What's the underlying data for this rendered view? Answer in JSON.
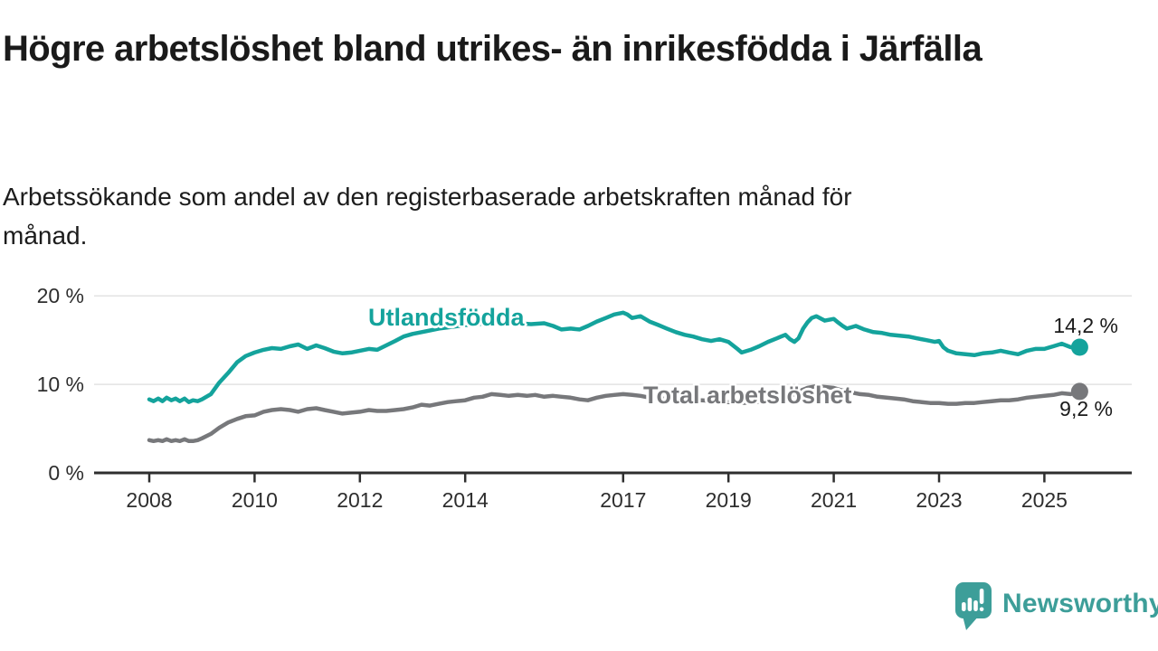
{
  "header": {
    "title": "Högre arbetslöshet bland utrikes- än inrikesfödda i Järfälla",
    "subtitle": "Arbetssökande som andel av den registerbaserade arbetskraften månad för månad."
  },
  "branding": {
    "logo_text": "Newsworthy",
    "logo_icon": "speech-bubble-bar-chart-icon",
    "logo_color": "#3D9E99"
  },
  "colors": {
    "background": "#ffffff",
    "title_text": "#1a1a1a",
    "teal_series": "#14A39C",
    "gray_series": "#77787B",
    "grid": "#E3E3E3",
    "axis": "#2E2E2E",
    "tick_text": "#2E2E2E",
    "value_text": "#1a1a1a"
  },
  "chart_data": {
    "type": "line",
    "title": "Högre arbetslöshet bland utrikes- än inrikesfödda i Järfälla",
    "xlabel": "",
    "ylabel": "",
    "unit": "%",
    "grid": "horizontal-only",
    "legend_position": "inline-labels",
    "xlim": [
      2007.85,
      2026.4
    ],
    "ylim": [
      0,
      21.5
    ],
    "x_ticks": [
      {
        "year": 2008,
        "label": "2008"
      },
      {
        "year": 2010,
        "label": "2010"
      },
      {
        "year": 2012,
        "label": "2012"
      },
      {
        "year": 2014,
        "label": "2014"
      },
      {
        "year": 2017,
        "label": "2017"
      },
      {
        "year": 2019,
        "label": "2019"
      },
      {
        "year": 2021,
        "label": "2021"
      },
      {
        "year": 2023,
        "label": "2023"
      },
      {
        "year": 2025,
        "label": "2025"
      }
    ],
    "y_ticks": [
      {
        "value": 0,
        "label": "0 %"
      },
      {
        "value": 10,
        "label": "10 %"
      },
      {
        "value": 20,
        "label": "20 %"
      }
    ],
    "series": [
      {
        "name": "Utlandsfödda",
        "color": "#14A39C",
        "end_value": 14.2,
        "end_label": "14,2 %",
        "points": [
          [
            2008.0,
            8.3
          ],
          [
            2008.08,
            8.1
          ],
          [
            2008.17,
            8.4
          ],
          [
            2008.25,
            8.1
          ],
          [
            2008.33,
            8.5
          ],
          [
            2008.42,
            8.2
          ],
          [
            2008.5,
            8.4
          ],
          [
            2008.58,
            8.1
          ],
          [
            2008.67,
            8.4
          ],
          [
            2008.75,
            8.0
          ],
          [
            2008.83,
            8.2
          ],
          [
            2008.92,
            8.1
          ],
          [
            2009.0,
            8.3
          ],
          [
            2009.17,
            8.9
          ],
          [
            2009.33,
            10.2
          ],
          [
            2009.5,
            11.3
          ],
          [
            2009.67,
            12.5
          ],
          [
            2009.83,
            13.2
          ],
          [
            2010.0,
            13.6
          ],
          [
            2010.17,
            13.9
          ],
          [
            2010.33,
            14.1
          ],
          [
            2010.5,
            14.0
          ],
          [
            2010.67,
            14.3
          ],
          [
            2010.83,
            14.5
          ],
          [
            2011.0,
            14.0
          ],
          [
            2011.17,
            14.4
          ],
          [
            2011.33,
            14.1
          ],
          [
            2011.5,
            13.7
          ],
          [
            2011.67,
            13.5
          ],
          [
            2011.83,
            13.6
          ],
          [
            2012.0,
            13.8
          ],
          [
            2012.17,
            14.0
          ],
          [
            2012.33,
            13.9
          ],
          [
            2012.5,
            14.4
          ],
          [
            2012.67,
            14.9
          ],
          [
            2012.83,
            15.4
          ],
          [
            2013.0,
            15.7
          ],
          [
            2013.25,
            16.0
          ],
          [
            2013.5,
            16.3
          ],
          [
            2013.75,
            16.5
          ],
          [
            2014.0,
            16.7
          ],
          [
            2014.25,
            16.8
          ],
          [
            2014.5,
            17.0
          ],
          [
            2014.75,
            17.0
          ],
          [
            2015.0,
            16.9
          ],
          [
            2015.25,
            16.8
          ],
          [
            2015.5,
            16.9
          ],
          [
            2015.67,
            16.6
          ],
          [
            2015.83,
            16.2
          ],
          [
            2016.0,
            16.3
          ],
          [
            2016.17,
            16.2
          ],
          [
            2016.33,
            16.6
          ],
          [
            2016.5,
            17.1
          ],
          [
            2016.67,
            17.5
          ],
          [
            2016.83,
            17.9
          ],
          [
            2017.0,
            18.1
          ],
          [
            2017.08,
            17.9
          ],
          [
            2017.17,
            17.5
          ],
          [
            2017.33,
            17.7
          ],
          [
            2017.5,
            17.1
          ],
          [
            2017.67,
            16.7
          ],
          [
            2017.83,
            16.3
          ],
          [
            2018.0,
            15.9
          ],
          [
            2018.17,
            15.6
          ],
          [
            2018.33,
            15.4
          ],
          [
            2018.5,
            15.1
          ],
          [
            2018.67,
            14.9
          ],
          [
            2018.83,
            15.1
          ],
          [
            2019.0,
            14.8
          ],
          [
            2019.17,
            14.0
          ],
          [
            2019.25,
            13.6
          ],
          [
            2019.42,
            13.9
          ],
          [
            2019.58,
            14.3
          ],
          [
            2019.75,
            14.8
          ],
          [
            2019.92,
            15.2
          ],
          [
            2020.0,
            15.4
          ],
          [
            2020.08,
            15.6
          ],
          [
            2020.17,
            15.1
          ],
          [
            2020.25,
            14.8
          ],
          [
            2020.33,
            15.2
          ],
          [
            2020.42,
            16.3
          ],
          [
            2020.5,
            17.0
          ],
          [
            2020.58,
            17.5
          ],
          [
            2020.67,
            17.7
          ],
          [
            2020.83,
            17.2
          ],
          [
            2021.0,
            17.4
          ],
          [
            2021.08,
            17.0
          ],
          [
            2021.17,
            16.6
          ],
          [
            2021.25,
            16.3
          ],
          [
            2021.42,
            16.6
          ],
          [
            2021.58,
            16.2
          ],
          [
            2021.75,
            15.9
          ],
          [
            2021.92,
            15.8
          ],
          [
            2022.08,
            15.6
          ],
          [
            2022.25,
            15.5
          ],
          [
            2022.42,
            15.4
          ],
          [
            2022.58,
            15.2
          ],
          [
            2022.75,
            15.0
          ],
          [
            2022.92,
            14.8
          ],
          [
            2023.0,
            14.9
          ],
          [
            2023.08,
            14.2
          ],
          [
            2023.17,
            13.8
          ],
          [
            2023.33,
            13.5
          ],
          [
            2023.5,
            13.4
          ],
          [
            2023.67,
            13.3
          ],
          [
            2023.83,
            13.5
          ],
          [
            2024.0,
            13.6
          ],
          [
            2024.17,
            13.8
          ],
          [
            2024.33,
            13.6
          ],
          [
            2024.5,
            13.4
          ],
          [
            2024.67,
            13.8
          ],
          [
            2024.83,
            14.0
          ],
          [
            2025.0,
            14.0
          ],
          [
            2025.17,
            14.3
          ],
          [
            2025.33,
            14.6
          ],
          [
            2025.5,
            14.2
          ],
          [
            2025.67,
            14.2
          ]
        ]
      },
      {
        "name": "Total arbetslöshet",
        "color": "#77787B",
        "end_value": 9.2,
        "end_label": "9,2 %",
        "points": [
          [
            2008.0,
            3.7
          ],
          [
            2008.08,
            3.6
          ],
          [
            2008.17,
            3.7
          ],
          [
            2008.25,
            3.6
          ],
          [
            2008.33,
            3.8
          ],
          [
            2008.42,
            3.6
          ],
          [
            2008.5,
            3.7
          ],
          [
            2008.58,
            3.6
          ],
          [
            2008.67,
            3.8
          ],
          [
            2008.75,
            3.6
          ],
          [
            2008.83,
            3.6
          ],
          [
            2008.92,
            3.7
          ],
          [
            2009.0,
            3.9
          ],
          [
            2009.17,
            4.4
          ],
          [
            2009.33,
            5.1
          ],
          [
            2009.5,
            5.7
          ],
          [
            2009.67,
            6.1
          ],
          [
            2009.83,
            6.4
          ],
          [
            2010.0,
            6.5
          ],
          [
            2010.17,
            6.9
          ],
          [
            2010.33,
            7.1
          ],
          [
            2010.5,
            7.2
          ],
          [
            2010.67,
            7.1
          ],
          [
            2010.83,
            6.9
          ],
          [
            2011.0,
            7.2
          ],
          [
            2011.17,
            7.3
          ],
          [
            2011.33,
            7.1
          ],
          [
            2011.5,
            6.9
          ],
          [
            2011.67,
            6.7
          ],
          [
            2011.83,
            6.8
          ],
          [
            2012.0,
            6.9
          ],
          [
            2012.17,
            7.1
          ],
          [
            2012.33,
            7.0
          ],
          [
            2012.5,
            7.0
          ],
          [
            2012.67,
            7.1
          ],
          [
            2012.83,
            7.2
          ],
          [
            2013.0,
            7.4
          ],
          [
            2013.17,
            7.7
          ],
          [
            2013.33,
            7.6
          ],
          [
            2013.5,
            7.8
          ],
          [
            2013.67,
            8.0
          ],
          [
            2013.83,
            8.1
          ],
          [
            2014.0,
            8.2
          ],
          [
            2014.17,
            8.5
          ],
          [
            2014.33,
            8.6
          ],
          [
            2014.5,
            8.9
          ],
          [
            2014.67,
            8.8
          ],
          [
            2014.83,
            8.7
          ],
          [
            2015.0,
            8.8
          ],
          [
            2015.17,
            8.7
          ],
          [
            2015.33,
            8.8
          ],
          [
            2015.5,
            8.6
          ],
          [
            2015.67,
            8.7
          ],
          [
            2015.83,
            8.6
          ],
          [
            2016.0,
            8.5
          ],
          [
            2016.17,
            8.3
          ],
          [
            2016.33,
            8.2
          ],
          [
            2016.5,
            8.5
          ],
          [
            2016.67,
            8.7
          ],
          [
            2016.83,
            8.8
          ],
          [
            2017.0,
            8.9
          ],
          [
            2017.17,
            8.8
          ],
          [
            2017.33,
            8.7
          ],
          [
            2017.5,
            8.5
          ],
          [
            2017.75,
            8.4
          ],
          [
            2018.0,
            8.3
          ],
          [
            2018.25,
            8.2
          ],
          [
            2018.5,
            8.2
          ],
          [
            2018.75,
            8.1
          ],
          [
            2019.0,
            8.0
          ],
          [
            2019.25,
            7.9
          ],
          [
            2019.5,
            8.0
          ],
          [
            2019.75,
            8.1
          ],
          [
            2020.0,
            8.3
          ],
          [
            2020.17,
            8.6
          ],
          [
            2020.33,
            9.2
          ],
          [
            2020.5,
            9.6
          ],
          [
            2020.67,
            9.8
          ],
          [
            2020.83,
            9.7
          ],
          [
            2021.0,
            9.6
          ],
          [
            2021.17,
            9.3
          ],
          [
            2021.33,
            9.1
          ],
          [
            2021.5,
            8.9
          ],
          [
            2021.67,
            8.8
          ],
          [
            2021.83,
            8.6
          ],
          [
            2022.0,
            8.5
          ],
          [
            2022.17,
            8.4
          ],
          [
            2022.33,
            8.3
          ],
          [
            2022.5,
            8.1
          ],
          [
            2022.67,
            8.0
          ],
          [
            2022.83,
            7.9
          ],
          [
            2023.0,
            7.9
          ],
          [
            2023.17,
            7.8
          ],
          [
            2023.33,
            7.8
          ],
          [
            2023.5,
            7.9
          ],
          [
            2023.67,
            7.9
          ],
          [
            2023.83,
            8.0
          ],
          [
            2024.0,
            8.1
          ],
          [
            2024.17,
            8.2
          ],
          [
            2024.33,
            8.2
          ],
          [
            2024.5,
            8.3
          ],
          [
            2024.67,
            8.5
          ],
          [
            2024.83,
            8.6
          ],
          [
            2025.0,
            8.7
          ],
          [
            2025.17,
            8.8
          ],
          [
            2025.33,
            9.0
          ],
          [
            2025.5,
            8.9
          ],
          [
            2025.67,
            9.2
          ]
        ]
      }
    ]
  }
}
